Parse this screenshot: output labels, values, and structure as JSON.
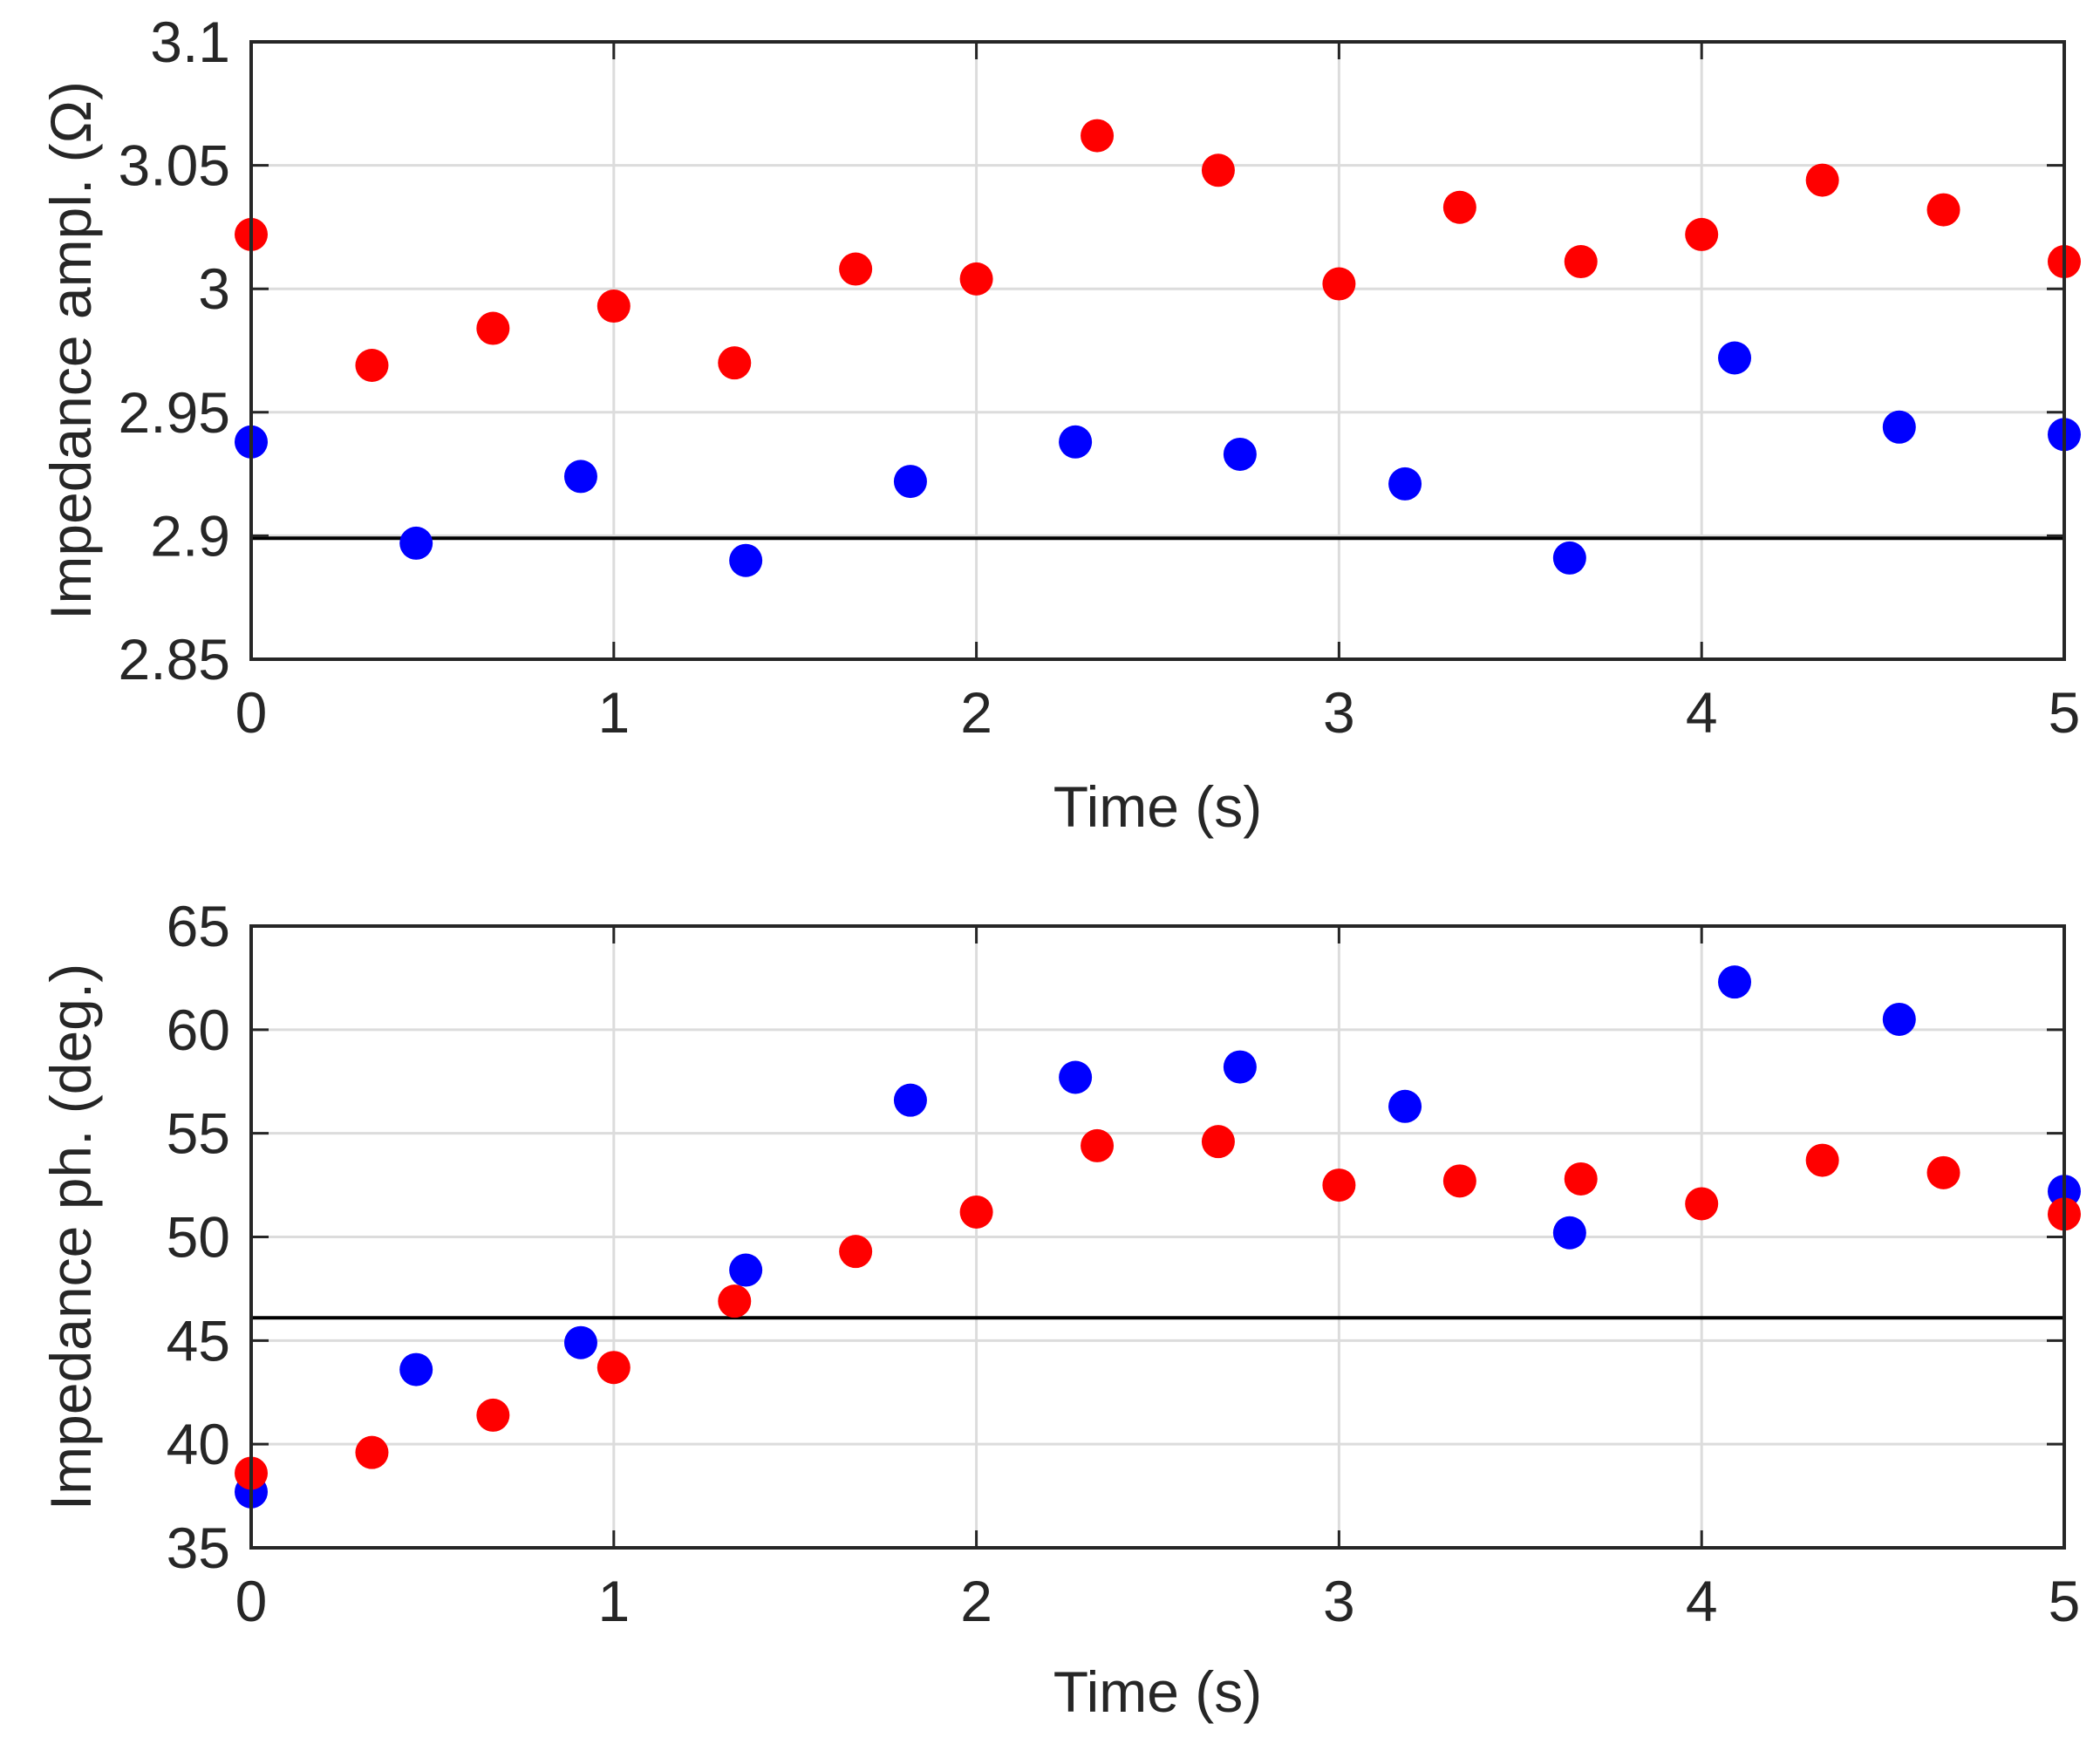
{
  "chart_data": [
    {
      "type": "scatter",
      "title": "",
      "xlabel": "Time (s)",
      "ylabel": "Impedance ampl. (Ω)",
      "xlim": [
        0,
        5
      ],
      "ylim": [
        2.85,
        3.1
      ],
      "xticks": [
        0,
        1,
        2,
        3,
        4,
        5
      ],
      "yticks": [
        2.85,
        2.9,
        2.95,
        3.0,
        3.05,
        3.1
      ],
      "xtick_labels": [
        "0",
        "1",
        "2",
        "3",
        "4",
        "5"
      ],
      "ytick_labels": [
        "2.85",
        "2.9",
        "2.95",
        "3",
        "3.05",
        "3.1"
      ],
      "grid": true,
      "reference_line": {
        "y": 2.899,
        "color": "#000000"
      },
      "series": [
        {
          "name": "blue",
          "color": "#0000ff",
          "x": [
            0,
            0.455,
            0.909,
            1.364,
            1.818,
            2.273,
            2.727,
            3.182,
            3.636,
            4.091,
            4.545,
            5.0
          ],
          "y": [
            2.938,
            2.897,
            2.924,
            2.89,
            2.922,
            2.938,
            2.933,
            2.921,
            2.891,
            2.972,
            2.944,
            2.941
          ]
        },
        {
          "name": "red",
          "color": "#ff0000",
          "x": [
            0,
            0.333,
            0.667,
            1.0,
            1.333,
            1.667,
            2.0,
            2.333,
            2.667,
            3.0,
            3.333,
            3.667,
            4.0,
            4.333,
            4.667,
            5.0
          ],
          "y": [
            3.022,
            2.969,
            2.984,
            2.993,
            2.97,
            3.008,
            3.004,
            3.062,
            3.048,
            3.002,
            3.033,
            3.011,
            3.022,
            3.044,
            3.032,
            3.011
          ]
        }
      ]
    },
    {
      "type": "scatter",
      "title": "",
      "xlabel": "Time (s)",
      "ylabel": "Impedance ph. (deg.)",
      "xlim": [
        0,
        5
      ],
      "ylim": [
        35,
        65
      ],
      "xticks": [
        0,
        1,
        2,
        3,
        4,
        5
      ],
      "yticks": [
        35,
        40,
        45,
        50,
        55,
        60,
        65
      ],
      "xtick_labels": [
        "0",
        "1",
        "2",
        "3",
        "4",
        "5"
      ],
      "ytick_labels": [
        "35",
        "40",
        "45",
        "50",
        "55",
        "60",
        "65"
      ],
      "grid": true,
      "reference_line": {
        "y": 46.1,
        "color": "#000000"
      },
      "series": [
        {
          "name": "blue",
          "color": "#0000ff",
          "x": [
            0,
            0.455,
            0.909,
            1.364,
            1.818,
            2.273,
            2.727,
            3.182,
            3.636,
            4.091,
            4.545,
            5.0
          ],
          "y": [
            37.7,
            43.6,
            44.9,
            48.4,
            56.6,
            57.7,
            58.2,
            56.3,
            50.2,
            62.3,
            60.5,
            52.2
          ]
        },
        {
          "name": "red",
          "color": "#ff0000",
          "x": [
            0,
            0.333,
            0.667,
            1.0,
            1.333,
            1.667,
            2.0,
            2.333,
            2.667,
            3.0,
            3.333,
            3.667,
            4.0,
            4.333,
            4.667,
            5.0
          ],
          "y": [
            38.6,
            39.6,
            41.4,
            43.7,
            46.9,
            49.3,
            51.2,
            54.4,
            54.6,
            52.5,
            52.7,
            52.8,
            51.6,
            53.7,
            53.1,
            51.1
          ]
        }
      ]
    }
  ]
}
